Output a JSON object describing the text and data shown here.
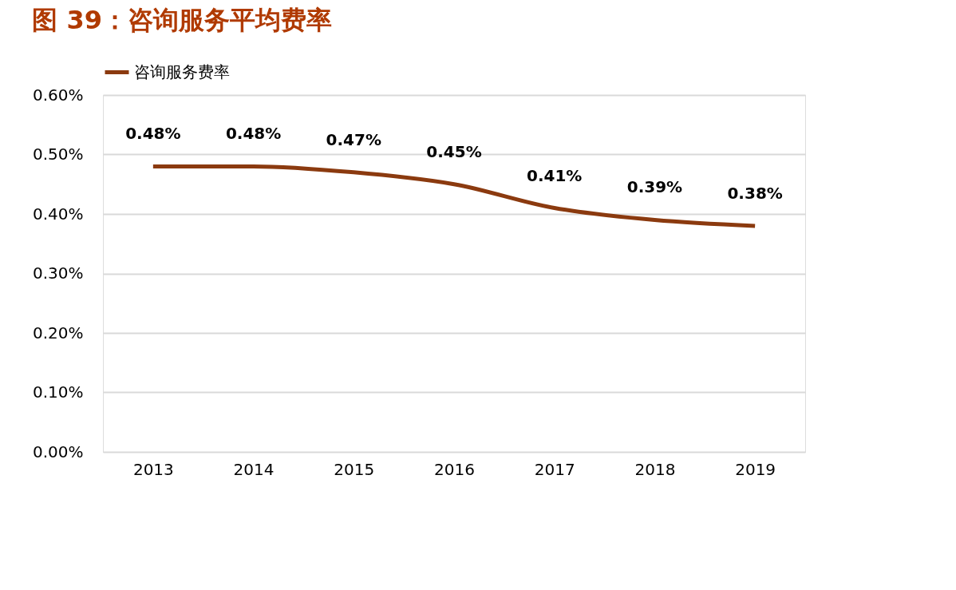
{
  "chart_data": {
    "type": "line",
    "title": "图 39：咨询服务平均费率",
    "categories": [
      "2013",
      "2014",
      "2015",
      "2016",
      "2017",
      "2018",
      "2019"
    ],
    "series": [
      {
        "name": "咨询服务费率",
        "color": "#8b3a0f",
        "values": [
          0.48,
          0.48,
          0.47,
          0.45,
          0.41,
          0.39,
          0.38
        ],
        "value_labels": [
          "0.48%",
          "0.48%",
          "0.47%",
          "0.45%",
          "0.41%",
          "0.39%",
          "0.38%"
        ]
      }
    ],
    "ylim": [
      0,
      0.6
    ],
    "yticks": [
      {
        "value": 0,
        "label": "0.00%"
      },
      {
        "value": 0.1,
        "label": "0.10%"
      },
      {
        "value": 0.2,
        "label": "0.20%"
      },
      {
        "value": 0.3,
        "label": "0.30%"
      },
      {
        "value": 0.4,
        "label": "0.40%"
      },
      {
        "value": 0.5,
        "label": "0.50%"
      },
      {
        "value": 0.6,
        "label": "0.60%"
      }
    ],
    "grid": "y",
    "legend": "top",
    "marker": "none",
    "line_style": "solid"
  }
}
